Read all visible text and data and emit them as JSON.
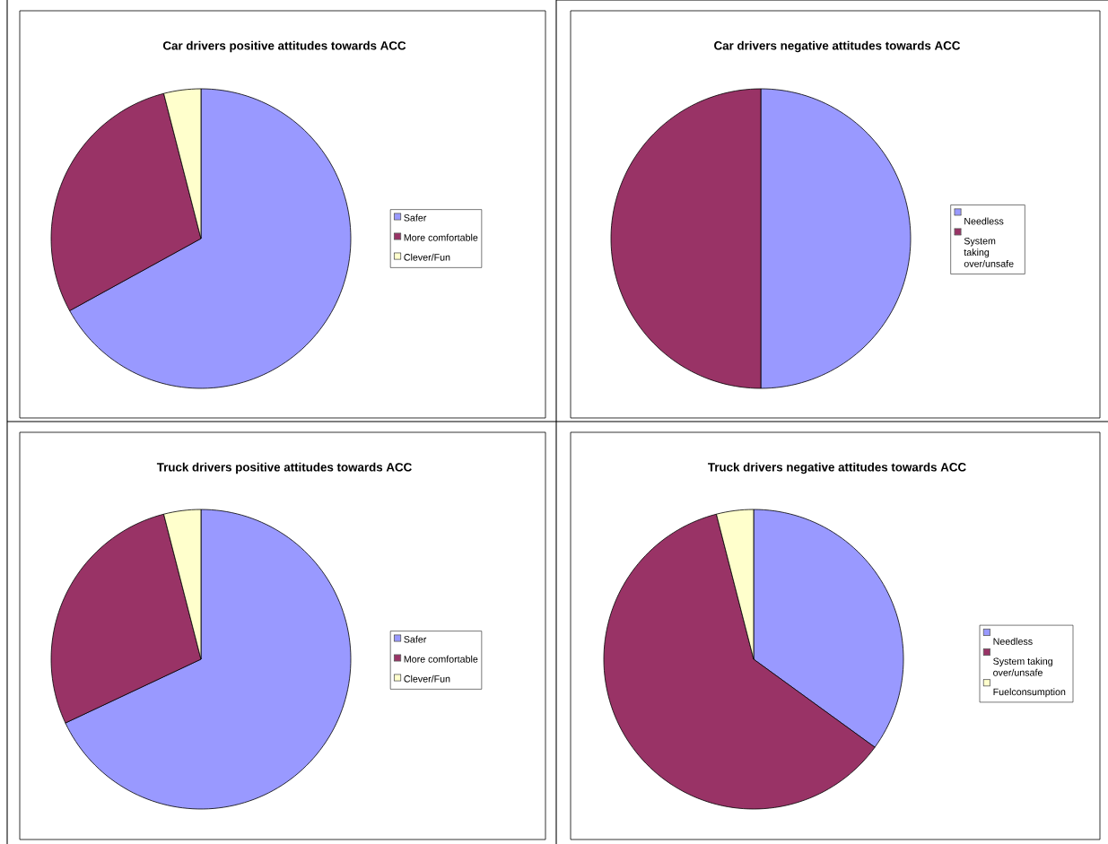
{
  "chart_data": [
    {
      "type": "pie",
      "title": "Car drivers positive attitudes towards ACC",
      "categories": [
        "Safer",
        "More comfortable",
        "Clever/Fun"
      ],
      "values": [
        67,
        29,
        4
      ],
      "colors": [
        "#9999ff",
        "#993366",
        "#ffffcc"
      ],
      "legend": "right"
    },
    {
      "type": "pie",
      "title": "Car drivers negative attitudes towards ACC",
      "categories": [
        "Needless",
        "System taking over/unsafe"
      ],
      "values": [
        50,
        50
      ],
      "colors": [
        "#9999ff",
        "#993366"
      ],
      "legend": "right"
    },
    {
      "type": "pie",
      "title": "Truck drivers positive attitudes towards ACC",
      "categories": [
        "Safer",
        "More comfortable",
        "Clever/Fun"
      ],
      "values": [
        68,
        28,
        4
      ],
      "colors": [
        "#9999ff",
        "#993366",
        "#ffffcc"
      ],
      "legend": "right"
    },
    {
      "type": "pie",
      "title": "Truck drivers negative attitudes towards ACC",
      "categories": [
        "Needless",
        "System taking over/unsafe",
        "Fuelconsumption"
      ],
      "values": [
        35,
        61,
        4
      ],
      "colors": [
        "#9999ff",
        "#993366",
        "#ffffcc"
      ],
      "legend": "right"
    }
  ]
}
